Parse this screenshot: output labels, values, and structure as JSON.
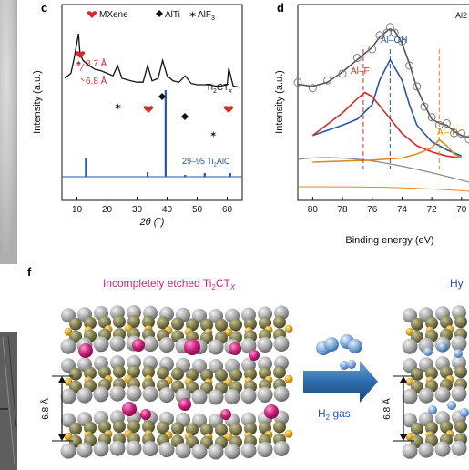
{
  "panels": {
    "c": {
      "letter": "c",
      "legend": [
        {
          "marker": "heart",
          "label": "MXene",
          "color": "#d42a2a"
        },
        {
          "marker": "diamond",
          "label": "AlTi",
          "color": "#111111"
        },
        {
          "marker": "star",
          "label": "AlF",
          "sub": "3",
          "color": "#111111"
        }
      ],
      "annotations": {
        "d1": "8.7 Å",
        "d2": "6.8 Å"
      },
      "sample_label": {
        "main": "Ti",
        "sub1": "2",
        "mid": "CT",
        "sub2": "x"
      },
      "reference_label": {
        "prefix": "29–95 Ti",
        "sub": "2",
        "suffix": "AlC"
      },
      "ylabel": "Intensity (a.u.)",
      "xlabel": "2θ (°)",
      "xticks": [
        "10",
        "20",
        "30",
        "40",
        "50",
        "60"
      ]
    },
    "d": {
      "letter": "d",
      "corner_label": "Al2",
      "peaks": [
        {
          "label": "Al–OH",
          "color": "#2456a6"
        },
        {
          "label": "Al–F",
          "color": "#d42a2a"
        },
        {
          "label": "Al–Ti",
          "color": "#e08a1e"
        }
      ],
      "ylabel": "Intensity (a.u.)",
      "xlabel": "Binding energy (eV)",
      "xticks": [
        "80",
        "78",
        "76",
        "74",
        "72",
        "70"
      ]
    },
    "f": {
      "letter": "f",
      "title_left": {
        "text": "Incompletely etched Ti",
        "sub1": "2",
        "mid": "CT",
        "sub2": "X"
      },
      "title_right": "Hy",
      "spacing": "6.8 Å",
      "spacing_right": "6.8 Å",
      "gas": {
        "main": "H",
        "sub": "2",
        "suffix": " gas"
      }
    }
  },
  "colors": {
    "red": "#d42a2a",
    "blue": "#2456a6",
    "magenta": "#c8287a",
    "orange": "#e08a1e",
    "atom_gray": "#a9a9a9",
    "atom_olive": "#7d7a4e",
    "atom_gold": "#d9a521",
    "atom_magenta": "#c81e78",
    "atom_blue": "#7fa8d8"
  },
  "chart_data": [
    {
      "type": "line",
      "title": "",
      "xlabel": "2θ (°)",
      "ylabel": "Intensity (a.u.)",
      "xlim": [
        5,
        65
      ],
      "series": [
        {
          "name": "Ti2CTx",
          "x": [
            6,
            8,
            9,
            10,
            10.5,
            11,
            12,
            14,
            16,
            18,
            20,
            22,
            23.5,
            25,
            28,
            30,
            32,
            33.5,
            35,
            37,
            38.5,
            40,
            42,
            44,
            46,
            48,
            50,
            52,
            54,
            56,
            58,
            60,
            60.5,
            62,
            64
          ],
          "y": [
            0.6,
            0.64,
            0.75,
            0.88,
            0.95,
            0.8,
            0.74,
            0.7,
            0.67,
            0.66,
            0.64,
            0.62,
            0.7,
            0.6,
            0.58,
            0.57,
            0.57,
            0.7,
            0.58,
            0.6,
            0.74,
            0.62,
            0.58,
            0.57,
            0.62,
            0.56,
            0.55,
            0.55,
            0.55,
            0.54,
            0.54,
            0.55,
            0.68,
            0.54,
            0.53
          ]
        },
        {
          "name": "29–95 Ti2AlC",
          "x": [
            13,
            33.5,
            39.5,
            46,
            52.5,
            61
          ],
          "y": [
            0.2,
            0.05,
            0.95,
            0.02,
            0.04,
            0.04
          ]
        }
      ]
    },
    {
      "type": "line",
      "title": "",
      "xlabel": "Binding energy (eV)",
      "ylabel": "Intensity (a.u.)",
      "xlim": [
        81,
        69.5
      ],
      "series": [
        {
          "name": "Al–OH",
          "x": [
            80,
            78,
            77,
            76,
            75.5,
            74.8,
            74,
            73.5,
            73,
            72,
            71,
            70
          ],
          "y": [
            0.25,
            0.3,
            0.33,
            0.4,
            0.52,
            0.62,
            0.52,
            0.4,
            0.3,
            0.22,
            0.18,
            0.15
          ]
        },
        {
          "name": "Al–F",
          "x": [
            80,
            78,
            77,
            76.5,
            76,
            75,
            74,
            73,
            72,
            71,
            70
          ],
          "y": [
            0.25,
            0.36,
            0.43,
            0.46,
            0.44,
            0.35,
            0.26,
            0.2,
            0.17,
            0.15,
            0.14
          ]
        },
        {
          "name": "Al–Ti",
          "x": [
            80,
            76,
            74,
            73,
            72,
            71.5,
            71,
            70.5,
            70
          ],
          "y": [
            0.12,
            0.13,
            0.14,
            0.16,
            0.19,
            0.23,
            0.2,
            0.16,
            0.14
          ]
        }
      ]
    }
  ]
}
